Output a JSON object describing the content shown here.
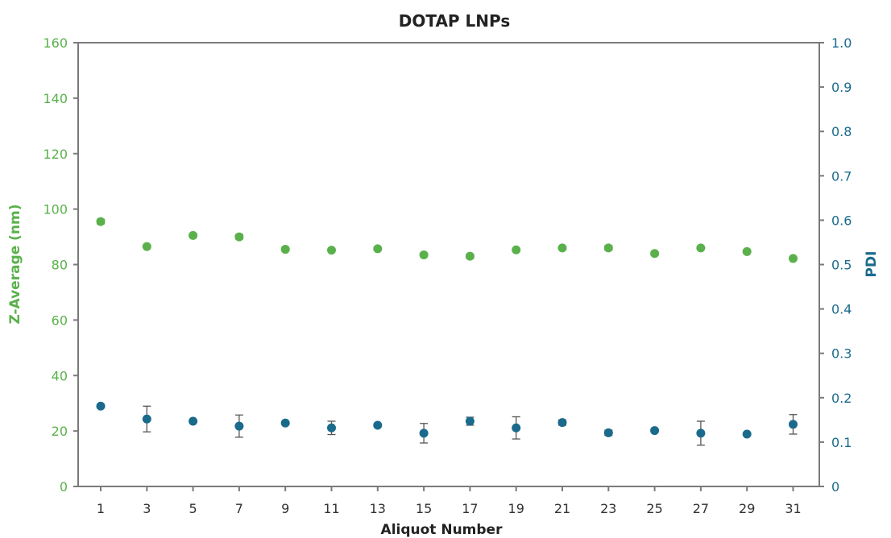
{
  "chart_data": {
    "type": "scatter",
    "title": "DOTAP LNPs",
    "xlabel": "Aliquot Number",
    "ylabel_left": "Z-Average (nm)",
    "ylabel_right": "PDI",
    "x": [
      1,
      3,
      5,
      7,
      9,
      11,
      13,
      15,
      17,
      19,
      21,
      23,
      25,
      27,
      29,
      31
    ],
    "x_ticks": [
      "1",
      "3",
      "5",
      "7",
      "9",
      "11",
      "13",
      "15",
      "17",
      "19",
      "21",
      "23",
      "25",
      "27",
      "29",
      "31"
    ],
    "ylim_left": [
      0,
      160
    ],
    "ylim_right": [
      0,
      1.0
    ],
    "y_ticks_left": [
      "0",
      "20",
      "40",
      "60",
      "80",
      "100",
      "120",
      "140",
      "160"
    ],
    "y_ticks_right": [
      "0",
      "0.1",
      "0.2",
      "0.3",
      "0.4",
      "0.5",
      "0.6",
      "0.7",
      "0.8",
      "0.9",
      "1.0"
    ],
    "grid": false,
    "colors": {
      "zaverage": "#5ab14b",
      "pdi": "#1a6a8c",
      "left_axis_text": "#5ab14b",
      "right_axis_text": "#1a6a8c"
    },
    "series": [
      {
        "axis": "left",
        "values": [
          95.5,
          86.5,
          90.5,
          90.0,
          85.5,
          85.2,
          85.7,
          83.5,
          83.0,
          85.3,
          86.0,
          86.0,
          84.0,
          86.0,
          84.7,
          82.2
        ],
        "errors": [
          0.8,
          0.5,
          0.6,
          0.8,
          0.6,
          0.4,
          0.5,
          0.6,
          0.7,
          0.4,
          0.5,
          0.8,
          0.6,
          0.5,
          0.4,
          0.4
        ]
      },
      {
        "axis": "right",
        "values": [
          0.181,
          0.152,
          0.147,
          0.136,
          0.143,
          0.132,
          0.138,
          0.12,
          0.147,
          0.132,
          0.144,
          0.121,
          0.126,
          0.12,
          0.118,
          0.14
        ],
        "errors": [
          0.004,
          0.029,
          0.002,
          0.025,
          0.003,
          0.015,
          0.003,
          0.022,
          0.009,
          0.025,
          0.006,
          0.006,
          0.003,
          0.027,
          0.002,
          0.022
        ]
      }
    ]
  }
}
